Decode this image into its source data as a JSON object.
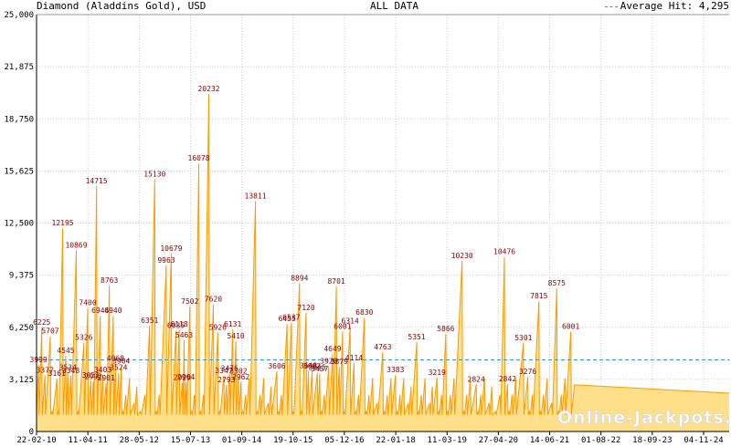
{
  "header": {
    "title": "Diamond (Aladdins Gold), USD",
    "center": "ALL DATA",
    "legend_label": "Average Hit: 4,295"
  },
  "watermark": "Online-Jackpots.biz",
  "colors": {
    "fill": "#ffe08a",
    "line": "#ff9900",
    "average": "#3399cc",
    "label": "#8b0000",
    "grid": "#cccccc"
  },
  "chart_data": {
    "type": "area",
    "ylim": [
      0,
      25000
    ],
    "yticks": [
      "0",
      "3,125",
      "6,250",
      "9,375",
      "12,500",
      "15,625",
      "18,750",
      "21,875",
      "25,000"
    ],
    "xticks": [
      "22-02-10",
      "11-04-11",
      "28-05-12",
      "15-07-13",
      "01-09-14",
      "19-10-15",
      "05-12-16",
      "22-01-18",
      "11-03-19",
      "27-04-20",
      "14-06-21",
      "01-08-22",
      "18-09-23",
      "04-11-24"
    ],
    "average": 4295,
    "grid": true,
    "peaks": [
      {
        "x": "2010-03-10",
        "value": 3999
      },
      {
        "x": "2010-04-05",
        "value": 6225
      },
      {
        "x": "2010-05-01",
        "value": 3377
      },
      {
        "x": "2010-06-12",
        "value": 5707
      },
      {
        "x": "2010-08-05",
        "value": 3161
      },
      {
        "x": "2010-09-20",
        "value": 12195
      },
      {
        "x": "2010-10-15",
        "value": 4545
      },
      {
        "x": "2010-11-01",
        "value": 3534
      },
      {
        "x": "2010-11-25",
        "value": 3348
      },
      {
        "x": "2011-01-08",
        "value": 10869
      },
      {
        "x": "2011-03-10",
        "value": 5326
      },
      {
        "x": "2011-04-10",
        "value": 7400
      },
      {
        "x": "2011-05-05",
        "value": 3051
      },
      {
        "x": "2011-05-25",
        "value": 2992
      },
      {
        "x": "2011-06-20",
        "value": 14715
      },
      {
        "x": "2011-07-20",
        "value": 6944
      },
      {
        "x": "2011-08-10",
        "value": 3403
      },
      {
        "x": "2011-09-05",
        "value": 2901
      },
      {
        "x": "2011-10-01",
        "value": 8763
      },
      {
        "x": "2011-11-01",
        "value": 6940
      },
      {
        "x": "2011-11-20",
        "value": 4068
      },
      {
        "x": "2011-12-15",
        "value": 3524
      },
      {
        "x": "2012-01-05",
        "value": 3904
      },
      {
        "x": "2012-08-20",
        "value": 6351
      },
      {
        "x": "2012-09-30",
        "value": 15130
      },
      {
        "x": "2013-01-01",
        "value": 9963
      },
      {
        "x": "2013-02-10",
        "value": 10679
      },
      {
        "x": "2013-03-20",
        "value": 6035
      },
      {
        "x": "2013-04-15",
        "value": 6118
      },
      {
        "x": "2013-05-10",
        "value": 2929
      },
      {
        "x": "2013-05-25",
        "value": 5463
      },
      {
        "x": "2013-06-10",
        "value": 2964
      },
      {
        "x": "2013-07-10",
        "value": 7502
      },
      {
        "x": "2013-09-20",
        "value": 16078
      },
      {
        "x": "2013-12-10",
        "value": 20232
      },
      {
        "x": "2014-01-15",
        "value": 7620
      },
      {
        "x": "2014-02-20",
        "value": 5926
      },
      {
        "x": "2014-04-10",
        "value": 3347
      },
      {
        "x": "2014-05-01",
        "value": 2793
      },
      {
        "x": "2014-05-25",
        "value": 3476
      },
      {
        "x": "2014-06-20",
        "value": 6131
      },
      {
        "x": "2014-07-15",
        "value": 5410
      },
      {
        "x": "2014-08-05",
        "value": 3302
      },
      {
        "x": "2014-08-25",
        "value": 2962
      },
      {
        "x": "2014-12-20",
        "value": 13811
      },
      {
        "x": "2015-06-10",
        "value": 3606
      },
      {
        "x": "2015-09-01",
        "value": 6455
      },
      {
        "x": "2015-10-05",
        "value": 6537
      },
      {
        "x": "2015-12-10",
        "value": 8894
      },
      {
        "x": "2016-02-01",
        "value": 7120
      },
      {
        "x": "2016-02-20",
        "value": 3648
      },
      {
        "x": "2016-03-20",
        "value": 3602
      },
      {
        "x": "2016-05-01",
        "value": 3515
      },
      {
        "x": "2016-05-20",
        "value": 3457
      },
      {
        "x": "2016-08-01",
        "value": 3920
      },
      {
        "x": "2016-09-01",
        "value": 4649
      },
      {
        "x": "2016-10-01",
        "value": 8701
      },
      {
        "x": "2016-10-25",
        "value": 3879
      },
      {
        "x": "2016-11-20",
        "value": 6001
      },
      {
        "x": "2017-01-20",
        "value": 6314
      },
      {
        "x": "2017-02-20",
        "value": 4114
      },
      {
        "x": "2017-05-15",
        "value": 6830
      },
      {
        "x": "2017-10-10",
        "value": 4763
      },
      {
        "x": "2018-01-20",
        "value": 3383
      },
      {
        "x": "2018-07-10",
        "value": 5351
      },
      {
        "x": "2018-12-20",
        "value": 3219
      },
      {
        "x": "2019-03-01",
        "value": 5866
      },
      {
        "x": "2019-07-10",
        "value": 10230
      },
      {
        "x": "2019-11-01",
        "value": 2824
      },
      {
        "x": "2020-06-15",
        "value": 10476
      },
      {
        "x": "2020-07-10",
        "value": 2842
      },
      {
        "x": "2020-11-15",
        "value": 5301
      },
      {
        "x": "2020-12-20",
        "value": 3276
      },
      {
        "x": "2021-03-20",
        "value": 7815
      },
      {
        "x": "2021-08-10",
        "value": 8575
      },
      {
        "x": "2021-12-01",
        "value": 6001
      }
    ]
  }
}
